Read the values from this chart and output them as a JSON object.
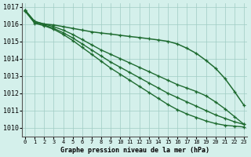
{
  "xlabel": "Graphe pression niveau de la mer (hPa)",
  "ylim": [
    1009.5,
    1017.2
  ],
  "xlim": [
    -0.3,
    23.3
  ],
  "yticks": [
    1010,
    1011,
    1012,
    1013,
    1014,
    1015,
    1016,
    1017
  ],
  "xticks": [
    0,
    1,
    2,
    3,
    4,
    5,
    6,
    7,
    8,
    9,
    10,
    11,
    12,
    13,
    14,
    15,
    16,
    17,
    18,
    19,
    20,
    21,
    22,
    23
  ],
  "bg_color": "#d4f0eb",
  "grid_color": "#a0ccc4",
  "line_color": "#1e6b30",
  "series": [
    [
      1016.8,
      1016.15,
      1016.0,
      1015.95,
      1015.85,
      1015.75,
      1015.65,
      1015.55,
      1015.48,
      1015.42,
      1015.35,
      1015.28,
      1015.22,
      1015.15,
      1015.08,
      1015.0,
      1014.85,
      1014.6,
      1014.3,
      1013.9,
      1013.45,
      1012.85,
      1012.1,
      1011.3
    ],
    [
      1016.8,
      1016.15,
      1016.0,
      1015.85,
      1015.65,
      1015.4,
      1015.1,
      1014.8,
      1014.5,
      1014.25,
      1014.0,
      1013.75,
      1013.5,
      1013.25,
      1013.0,
      1012.75,
      1012.5,
      1012.3,
      1012.1,
      1011.85,
      1011.5,
      1011.1,
      1010.65,
      1010.2
    ],
    [
      1016.75,
      1016.1,
      1015.95,
      1015.75,
      1015.5,
      1015.2,
      1014.85,
      1014.5,
      1014.15,
      1013.8,
      1013.5,
      1013.2,
      1012.9,
      1012.6,
      1012.3,
      1012.0,
      1011.75,
      1011.5,
      1011.25,
      1011.0,
      1010.75,
      1010.55,
      1010.35,
      1010.2
    ],
    [
      1016.75,
      1016.05,
      1015.9,
      1015.7,
      1015.4,
      1015.05,
      1014.65,
      1014.25,
      1013.85,
      1013.45,
      1013.1,
      1012.75,
      1012.4,
      1012.05,
      1011.7,
      1011.35,
      1011.05,
      1010.8,
      1010.6,
      1010.4,
      1010.25,
      1010.15,
      1010.1,
      1010.05
    ]
  ]
}
